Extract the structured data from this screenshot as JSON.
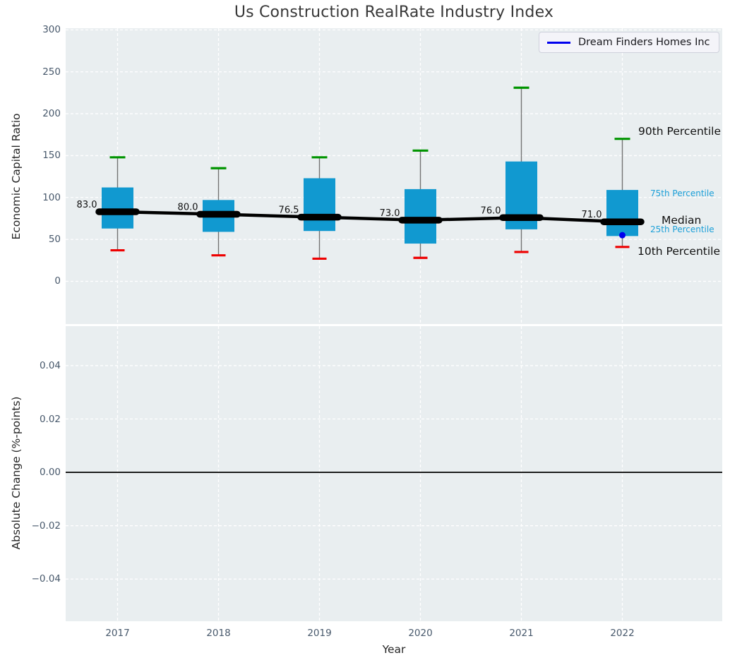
{
  "title": "Us Construction RealRate Industry Index",
  "legend": {
    "label": "Dream Finders Homes Inc",
    "line_color": "#0000ee"
  },
  "x_axis": {
    "label": "Year",
    "tick_labels": [
      "2017",
      "2018",
      "2019",
      "2020",
      "2021",
      "2022"
    ]
  },
  "top_axis": {
    "label": "Economic Capital Ratio",
    "tick_labels": [
      "300",
      "250",
      "200",
      "150",
      "100",
      "50",
      "0"
    ],
    "tick_values": [
      300,
      250,
      200,
      150,
      100,
      50,
      0
    ]
  },
  "bottom_axis": {
    "label": "Absolute Change (%-points)",
    "tick_labels": [
      "0.04",
      "0.02",
      "0.00",
      "−0.02",
      "−0.04"
    ],
    "tick_values": [
      0.04,
      0.02,
      0.0,
      -0.02,
      -0.04
    ]
  },
  "annotations": {
    "p90": "90th Percentile",
    "p75": "75th Percentile",
    "median": "Median",
    "p25": "25th Percentile",
    "p10": "10th Percentile"
  },
  "colors": {
    "box_fill": "#1199d0",
    "whisker": "#737373",
    "cap_top": "#009400",
    "cap_bottom": "#ee0000",
    "median_line": "#000000",
    "median_label": "#111111",
    "company_marker": "#0000ee",
    "panel_bg": "#e9eef0",
    "grid": "#ffffff",
    "zero_line": "#000000",
    "tick_label": "#47586b",
    "annotation_blue": "#1b9fd8"
  },
  "chart_data": {
    "type": "box",
    "title": "Us Construction RealRate Industry Index",
    "xlabel": "Year",
    "ylabel_top": "Economic Capital Ratio",
    "ylabel_bottom": "Absolute Change (%-points)",
    "categories": [
      "2017",
      "2018",
      "2019",
      "2020",
      "2021",
      "2022"
    ],
    "grid": true,
    "legend_position": "upper right",
    "top_panel": {
      "ylim": [
        -51,
        302
      ],
      "yticks": [
        0,
        50,
        100,
        150,
        200,
        250,
        300
      ],
      "boxes": [
        {
          "x": "2017",
          "p10": 37,
          "p25": 63,
          "median": 83.0,
          "p75": 112,
          "p90": 148,
          "median_label": "83.0"
        },
        {
          "x": "2018",
          "p10": 31,
          "p25": 59,
          "median": 80.0,
          "p75": 97,
          "p90": 135,
          "median_label": "80.0"
        },
        {
          "x": "2019",
          "p10": 27,
          "p25": 60,
          "median": 76.5,
          "p75": 123,
          "p90": 148,
          "median_label": "76.5"
        },
        {
          "x": "2020",
          "p10": 28,
          "p25": 45,
          "median": 73.0,
          "p75": 110,
          "p90": 156,
          "median_label": "73.0"
        },
        {
          "x": "2021",
          "p10": 35,
          "p25": 62,
          "median": 76.0,
          "p75": 143,
          "p90": 231,
          "median_label": "76.0"
        },
        {
          "x": "2022",
          "p10": 41,
          "p25": 54,
          "median": 71.0,
          "p75": 109,
          "p90": 170,
          "median_label": "71.0"
        }
      ],
      "median_series": [
        83.0,
        80.0,
        76.5,
        73.0,
        76.0,
        71.0
      ],
      "company_series": {
        "name": "Dream Finders Homes Inc",
        "points": [
          {
            "x": "2022",
            "y": 55
          }
        ]
      }
    },
    "bottom_panel": {
      "ylim": [
        -0.0558,
        0.0548
      ],
      "yticks": [
        0.04,
        0.02,
        0.0,
        -0.02,
        -0.04
      ],
      "zero_line": 0.0,
      "series": []
    }
  }
}
